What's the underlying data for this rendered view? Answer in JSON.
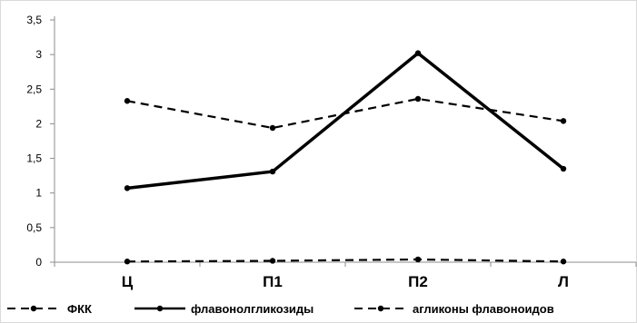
{
  "chart_data": {
    "type": "line",
    "categories": [
      "Ц",
      "П1",
      "П2",
      "Л"
    ],
    "y_tick_labels": [
      "0",
      "0,5",
      "1",
      "1,5",
      "2",
      "2,5",
      "3",
      "3,5"
    ],
    "ylim": [
      0,
      3.5
    ],
    "ystep": 0.5,
    "grid": false,
    "legend_position": "bottom",
    "series": [
      {
        "name": "ФКК",
        "values": [
          2.33,
          1.94,
          2.36,
          2.04
        ],
        "style": "dashed",
        "width": 2.2,
        "color": "#000000"
      },
      {
        "name": "флавонолгликозиды",
        "values": [
          1.07,
          1.31,
          3.02,
          1.35
        ],
        "style": "solid",
        "width": 3.5,
        "color": "#000000"
      },
      {
        "name": "агликоны флавоноидов",
        "values": [
          0.01,
          0.02,
          0.04,
          0.01
        ],
        "style": "dashed",
        "width": 2.2,
        "color": "#000000"
      }
    ]
  }
}
